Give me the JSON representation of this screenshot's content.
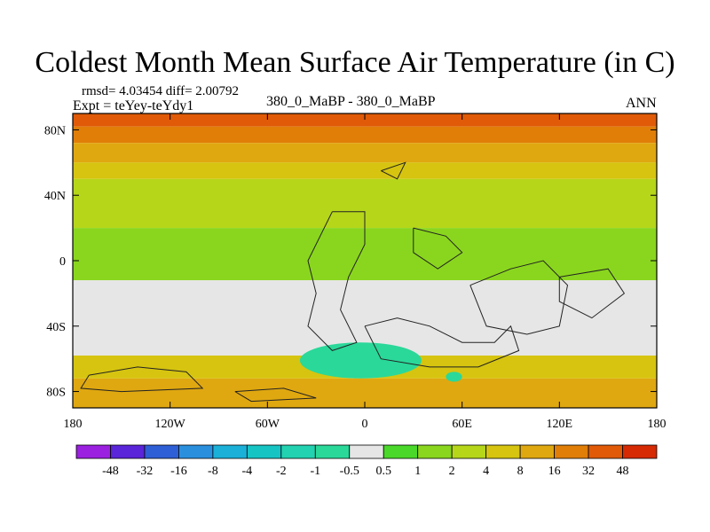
{
  "chart_data": {
    "type": "heatmap",
    "title": "Coldest Month Mean Surface Air Temperature (in C)",
    "stats_text": "rmsd= 4.03454 diff= 2.00792",
    "expt_text": "Expt = teYey-teYdy1",
    "center_label": "380_0_MaBP - 380_0_MaBP",
    "season_label": "ANN",
    "xlim": [
      -180,
      180
    ],
    "ylim": [
      -90,
      90
    ],
    "x_ticks": [
      {
        "value": -180,
        "label": "180"
      },
      {
        "value": -120,
        "label": "120W"
      },
      {
        "value": -60,
        "label": "60W"
      },
      {
        "value": 0,
        "label": "0"
      },
      {
        "value": 60,
        "label": "60E"
      },
      {
        "value": 120,
        "label": "120E"
      },
      {
        "value": 180,
        "label": "180"
      }
    ],
    "y_ticks": [
      {
        "value": 80,
        "label": "80N"
      },
      {
        "value": 40,
        "label": "40N"
      },
      {
        "value": 0,
        "label": "0"
      },
      {
        "value": -40,
        "label": "40S"
      },
      {
        "value": -80,
        "label": "80S"
      }
    ],
    "colorbar": {
      "levels": [
        "-48",
        "-32",
        "-16",
        "-8",
        "-4",
        "-2",
        "-1",
        "-0.5",
        "0.5",
        "1",
        "2",
        "4",
        "8",
        "16",
        "32",
        "48"
      ],
      "colors": [
        "#9b20e0",
        "#5a24d8",
        "#2f5fd6",
        "#2a90de",
        "#1ab0d8",
        "#17c4c4",
        "#22d2b0",
        "#2ad89a",
        "#e6e6e6",
        "#4ad82a",
        "#8ad61e",
        "#b6d61a",
        "#d6c410",
        "#e0a810",
        "#e07e08",
        "#e05a08",
        "#d62a04"
      ]
    },
    "bands": [
      {
        "lat_top": 90,
        "lat_bottom": 82,
        "value": 32
      },
      {
        "lat_top": 82,
        "lat_bottom": 72,
        "value": 16
      },
      {
        "lat_top": 72,
        "lat_bottom": 60,
        "value": 8
      },
      {
        "lat_top": 60,
        "lat_bottom": 50,
        "value": 4
      },
      {
        "lat_top": 50,
        "lat_bottom": 20,
        "value": 2
      },
      {
        "lat_top": 20,
        "lat_bottom": -12,
        "value": 1
      },
      {
        "lat_top": -12,
        "lat_bottom": -58,
        "value": 0
      },
      {
        "lat_top": -58,
        "lat_bottom": -72,
        "value": 4
      },
      {
        "lat_top": -72,
        "lat_bottom": -90,
        "value": 8
      }
    ],
    "features": [
      {
        "type": "cold_pool",
        "lon": [
          -40,
          35
        ],
        "lat": [
          -72,
          -50
        ],
        "value": -1
      },
      {
        "type": "cold_pool",
        "lon": [
          50,
          60
        ],
        "lat": [
          -74,
          -68
        ],
        "value": -1
      }
    ]
  }
}
